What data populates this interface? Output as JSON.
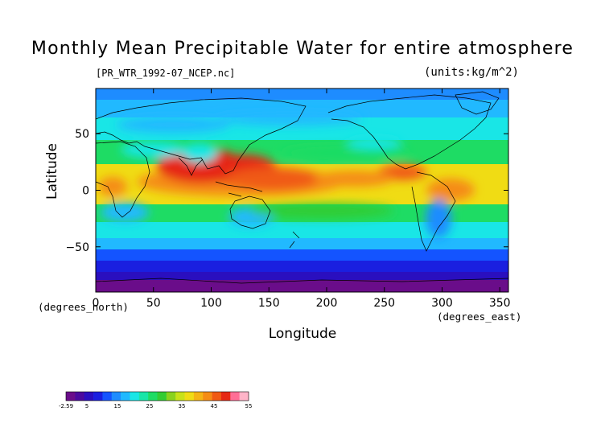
{
  "chart_data": {
    "type": "heatmap",
    "title": "Monthly Mean Precipitable Water for entire atmosphere",
    "source_file": "[PR_WTR_1992-07_NCEP.nc]",
    "units_label": "(units:kg/m^2)",
    "xlabel": "Longitude",
    "ylabel": "Latitude",
    "x_unit_label": "(degrees_east)",
    "y_unit_label": "(degrees_north)",
    "xlim": [
      0,
      357.5
    ],
    "ylim": [
      -90,
      90
    ],
    "x_ticks": [
      0,
      50,
      100,
      150,
      200,
      250,
      300,
      350
    ],
    "y_ticks": [
      50,
      0,
      -50
    ],
    "colorbar": {
      "min": -2.59,
      "max": 55,
      "tick_labels": [
        "-2.59",
        "5",
        "15",
        "25",
        "35",
        "45",
        "55"
      ],
      "colors": [
        "#6a0d8a",
        "#4b0a9e",
        "#2a0fbf",
        "#1a1fe0",
        "#1454ff",
        "#1e8cff",
        "#21b9ff",
        "#19e6e6",
        "#19e6a8",
        "#1edc64",
        "#33cc33",
        "#8ad21e",
        "#c8e119",
        "#f0dc14",
        "#f5b414",
        "#f58c14",
        "#f05a14",
        "#e62814",
        "#ff6e96",
        "#ffb4c8"
      ]
    },
    "grid": false,
    "legend": "none"
  }
}
